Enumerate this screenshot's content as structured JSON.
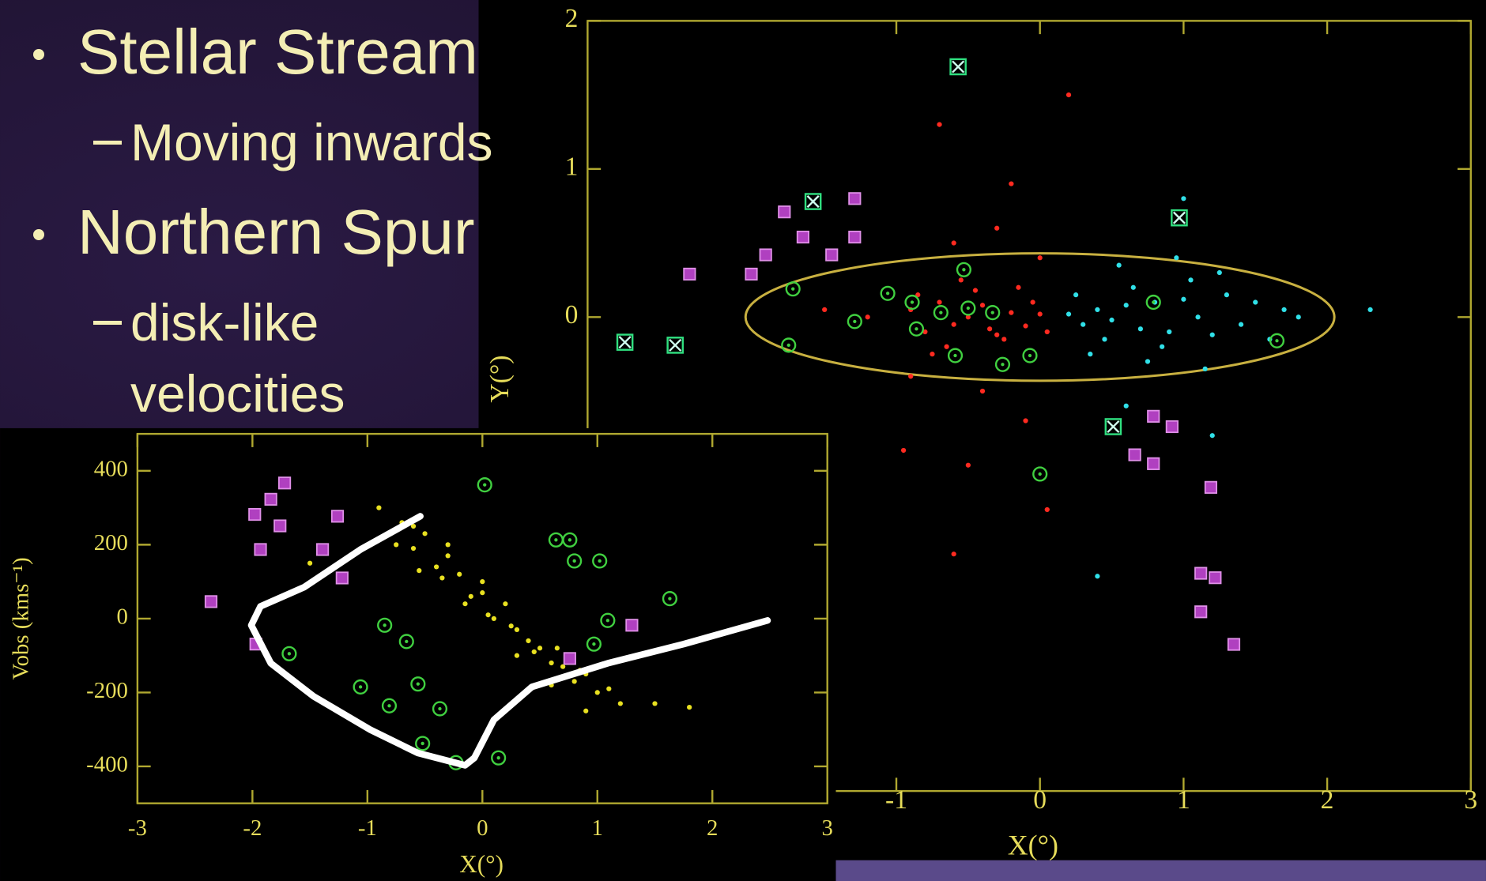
{
  "slide": {
    "bullets": [
      {
        "text": "Stellar Stream",
        "sub": [
          "Moving inwards"
        ]
      },
      {
        "text": "Northern Spur",
        "sub": [
          "disk-like velocities"
        ]
      }
    ]
  },
  "chart_data": [
    {
      "type": "scatter",
      "xlabel": "X(°)",
      "ylabel": "Y(°)",
      "frame_color": "#b0a830",
      "xlim": [
        -3.15,
        3
      ],
      "ylim": [
        -3.2,
        2
      ],
      "xticks": [
        -1,
        0,
        1,
        2,
        3
      ],
      "yticks": [
        0,
        1,
        2
      ],
      "ellipse": {
        "cx": 0,
        "cy": 0,
        "rx": 2.05,
        "ry": 0.43,
        "color": "#c8b040"
      },
      "series": [
        {
          "marker": "dot",
          "color": "#ff2a20",
          "x": [
            -0.9,
            -0.8,
            -0.7,
            -0.6,
            -0.5,
            -0.4,
            -0.3,
            -0.2,
            -0.1,
            0.0,
            -0.85,
            -0.65,
            -0.45,
            -0.25,
            -0.05,
            -0.75,
            -0.55,
            -0.35,
            -0.15,
            0.05,
            -1.2,
            -1.5,
            -0.6,
            -0.3,
            0.0,
            -0.9,
            -0.4,
            -0.7,
            0.2,
            -0.2,
            -0.95,
            -0.5,
            0.05,
            -0.6,
            -0.1
          ],
          "values": [
            0.05,
            -0.1,
            0.1,
            -0.05,
            0.0,
            0.08,
            -0.12,
            0.03,
            -0.06,
            0.02,
            0.15,
            -0.2,
            0.18,
            -0.15,
            0.1,
            -0.25,
            0.25,
            -0.08,
            0.2,
            -0.1,
            0.0,
            0.05,
            0.5,
            0.6,
            0.4,
            -0.4,
            -0.5,
            1.3,
            1.5,
            0.9,
            -0.9,
            -1.0,
            -1.3,
            -1.6,
            -0.7
          ]
        },
        {
          "marker": "dot",
          "color": "#30e0e8",
          "x": [
            0.2,
            0.3,
            0.4,
            0.5,
            0.6,
            0.7,
            0.8,
            0.9,
            1.0,
            1.1,
            1.2,
            1.3,
            1.4,
            1.5,
            1.6,
            1.7,
            1.8,
            0.25,
            0.45,
            0.65,
            0.85,
            1.05,
            1.25,
            0.35,
            0.55,
            0.75,
            0.95,
            1.15,
            2.3,
            1.0,
            0.6,
            1.2,
            0.4
          ],
          "values": [
            0.02,
            -0.05,
            0.05,
            -0.02,
            0.08,
            -0.08,
            0.1,
            -0.1,
            0.12,
            0.0,
            -0.12,
            0.15,
            -0.05,
            0.1,
            -0.15,
            0.05,
            0.0,
            0.15,
            -0.15,
            0.2,
            -0.2,
            0.25,
            0.3,
            -0.25,
            0.35,
            -0.3,
            0.4,
            -0.35,
            0.05,
            0.8,
            -0.6,
            -0.8,
            -1.75
          ]
        },
        {
          "marker": "circle-dot",
          "color": "#40d040",
          "x": [
            -1.72,
            -1.29,
            -1.06,
            -0.89,
            -0.86,
            -0.69,
            -0.59,
            -0.5,
            -0.33,
            -0.26,
            -0.07,
            -0.53,
            -1.75,
            0.0,
            0.79,
            1.65
          ],
          "values": [
            0.19,
            -0.03,
            0.16,
            0.1,
            -0.08,
            0.03,
            -0.26,
            0.06,
            0.03,
            -0.32,
            -0.26,
            0.32,
            -0.19,
            -1.06,
            0.1,
            -0.16
          ]
        },
        {
          "marker": "square",
          "color": "#b040c0",
          "x": [
            -2.01,
            -1.91,
            -1.78,
            -1.65,
            -1.45,
            -1.29,
            -2.44,
            -1.29,
            0.79,
            0.92,
            0.66,
            0.79,
            1.19,
            1.12,
            1.22,
            1.12,
            1.35
          ],
          "values": [
            0.29,
            0.42,
            0.71,
            0.54,
            0.42,
            0.8,
            0.29,
            0.54,
            -0.67,
            -0.74,
            -0.93,
            -0.99,
            -1.15,
            -1.73,
            -1.76,
            -1.99,
            -2.21
          ]
        },
        {
          "marker": "x-box",
          "color": "#30e080",
          "x": [
            -0.57,
            -1.58,
            0.97,
            -2.89,
            0.51,
            -2.54
          ],
          "values": [
            1.69,
            0.78,
            0.67,
            -0.17,
            -0.74,
            -0.19
          ]
        }
      ]
    },
    {
      "type": "scatter",
      "xlabel": "X(°)",
      "ylabel": "Vobs (kms⁻¹)",
      "frame_color": "#b0a830",
      "xlim": [
        -3,
        3
      ],
      "ylim": [
        -500,
        500
      ],
      "xticks": [
        -3,
        -2,
        -1,
        0,
        1,
        2,
        3
      ],
      "yticks": [
        -400,
        -200,
        0,
        200,
        400
      ],
      "series": [
        {
          "marker": "dot",
          "color": "#e8e020",
          "x": [
            -0.9,
            -0.8,
            -0.7,
            -0.6,
            -0.5,
            -0.4,
            -0.3,
            -0.2,
            -0.1,
            0,
            0.1,
            0.2,
            0.3,
            0.4,
            0.5,
            0.6,
            0.7,
            0.8,
            0.9,
            1.0,
            1.1,
            1.2,
            -0.75,
            -0.55,
            -0.35,
            -0.15,
            0.05,
            0.25,
            0.45,
            0.65,
            0.85,
            -0.6,
            -0.3,
            0,
            0.3,
            0.6,
            0.9,
            1.5,
            1.8,
            -1.5
          ],
          "values": [
            300,
            230,
            260,
            190,
            230,
            140,
            170,
            120,
            60,
            70,
            0,
            40,
            -30,
            -60,
            -80,
            -120,
            -130,
            -170,
            -150,
            -200,
            -190,
            -230,
            200,
            130,
            110,
            40,
            10,
            -20,
            -90,
            -80,
            -140,
            250,
            200,
            100,
            -100,
            -180,
            -250,
            -230,
            -240,
            150
          ]
        },
        {
          "marker": "square",
          "color": "#b040c0",
          "x": [
            -2.36,
            -1.98,
            -1.84,
            -1.72,
            -1.76,
            -1.93,
            -1.39,
            -1.22,
            -1.26,
            0.76,
            1.3,
            -1.97
          ],
          "values": [
            46,
            282,
            323,
            367,
            251,
            187,
            187,
            110,
            277,
            -108,
            -18,
            -69
          ]
        },
        {
          "marker": "circle-dot",
          "color": "#40d040",
          "x": [
            0.02,
            0.64,
            0.76,
            0.8,
            1.02,
            1.63,
            1.09,
            -0.85,
            -0.66,
            -1.06,
            -0.56,
            -0.37,
            -1.68,
            -0.81,
            -0.52,
            0.14,
            -0.23,
            0.97
          ],
          "values": [
            362,
            213,
            213,
            156,
            156,
            54,
            -5,
            -18,
            -62,
            -185,
            -177,
            -244,
            -95,
            -236,
            -338,
            -377,
            -390,
            -69
          ]
        },
        {
          "marker": "line",
          "color": "#ffffff",
          "x": [
            -0.54,
            -1.06,
            -1.55,
            -1.93,
            -2.01,
            -1.84,
            -1.47,
            -0.98,
            -0.56,
            -0.15,
            -0.07,
            0.1,
            0.43,
            1.09,
            1.75,
            2.48
          ],
          "values": [
            277,
            187,
            85,
            33,
            -18,
            -121,
            -210,
            -300,
            -364,
            -397,
            -377,
            -274,
            -185,
            -121,
            -69,
            -5
          ]
        }
      ]
    }
  ]
}
